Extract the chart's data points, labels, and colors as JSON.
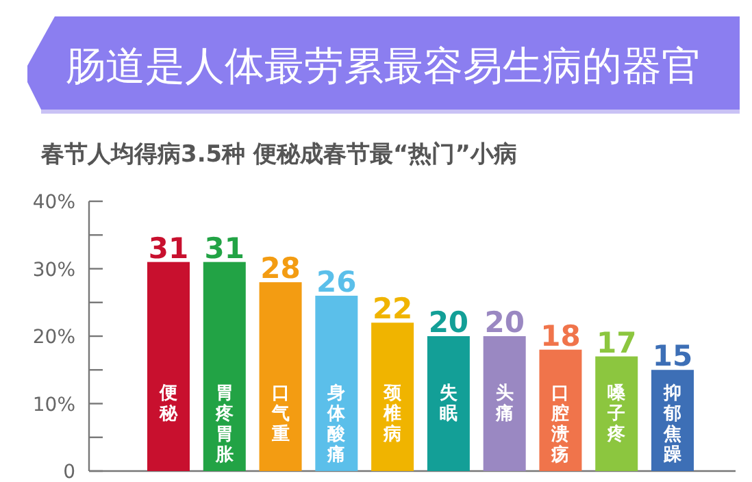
{
  "chart_data": {
    "type": "bar",
    "title": "肠道是人体最劳累最容易生病的器官",
    "subtitle": "春节人均得病3.5种  便秘成春节最“热门”小病",
    "categories": [
      "便秘",
      "胃疼胃胀",
      "口气重",
      "身体酸痛",
      "颈椎病",
      "失眠",
      "头痛",
      "口腔溃疡",
      "嗓子疼",
      "抑郁焦躁"
    ],
    "values": [
      31,
      31,
      28,
      26,
      22,
      20,
      20,
      18,
      17,
      15
    ],
    "value_labels": [
      "31",
      "31",
      "28",
      "26",
      "22",
      "20",
      "20",
      "18",
      "17",
      "15"
    ],
    "colors": [
      "#c8102e",
      "#22a345",
      "#f39c12",
      "#5bbfea",
      "#f0b400",
      "#139f97",
      "#9a88c2",
      "#f0744b",
      "#8cc63f",
      "#3d6fb6"
    ],
    "ylim": [
      0,
      40
    ],
    "yticks": [
      {
        "value": 0,
        "label": "0"
      },
      {
        "value": 5,
        "label": null
      },
      {
        "value": 10,
        "label": "10%"
      },
      {
        "value": 15,
        "label": null
      },
      {
        "value": 20,
        "label": "20%"
      },
      {
        "value": 25,
        "label": null
      },
      {
        "value": 30,
        "label": "30%"
      },
      {
        "value": 35,
        "label": null
      },
      {
        "value": 40,
        "label": "40%"
      }
    ]
  }
}
